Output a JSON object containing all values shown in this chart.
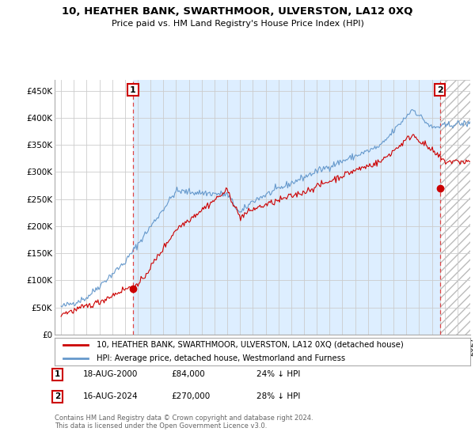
{
  "title": "10, HEATHER BANK, SWARTHMOOR, ULVERSTON, LA12 0XQ",
  "subtitle": "Price paid vs. HM Land Registry's House Price Index (HPI)",
  "legend_line1": "10, HEATHER BANK, SWARTHMOOR, ULVERSTON, LA12 0XQ (detached house)",
  "legend_line2": "HPI: Average price, detached house, Westmorland and Furness",
  "annotation1_date": "18-AUG-2000",
  "annotation1_price": "£84,000",
  "annotation1_hpi": "24% ↓ HPI",
  "annotation2_date": "16-AUG-2024",
  "annotation2_price": "£270,000",
  "annotation2_hpi": "28% ↓ HPI",
  "footer": "Contains HM Land Registry data © Crown copyright and database right 2024.\nThis data is licensed under the Open Government Licence v3.0.",
  "sale1_year": 2000.63,
  "sale1_price": 84000,
  "sale2_year": 2024.63,
  "sale2_price": 270000,
  "red_color": "#cc0000",
  "blue_color": "#6699cc",
  "shade_color": "#ddeeff",
  "hatch_color": "#cccccc",
  "background_color": "#ffffff",
  "grid_color": "#cccccc",
  "ylim_max": 470000,
  "xlim_start": 1994.5,
  "xlim_end": 2027.0,
  "yticks": [
    0,
    50000,
    100000,
    150000,
    200000,
    250000,
    300000,
    350000,
    400000,
    450000
  ],
  "ylabels": [
    "£0",
    "£50K",
    "£100K",
    "£150K",
    "£200K",
    "£250K",
    "£300K",
    "£350K",
    "£400K",
    "£450K"
  ],
  "xtick_start": 1995,
  "xtick_end": 2027
}
